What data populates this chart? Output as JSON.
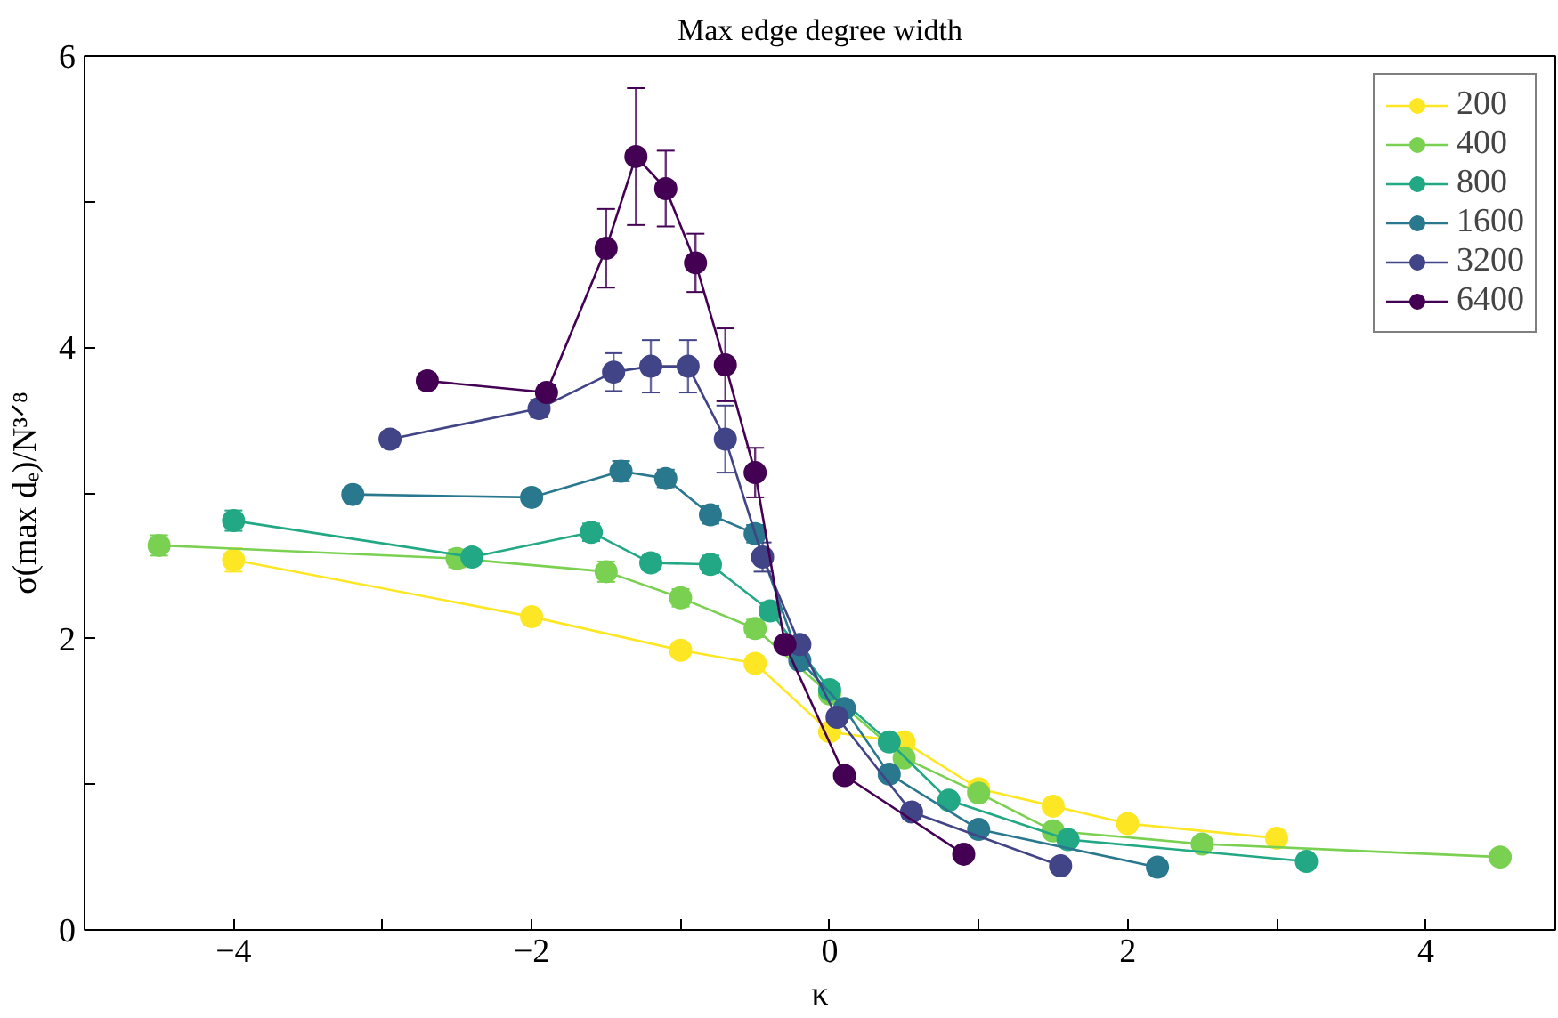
{
  "chart_data": {
    "type": "line",
    "title": "Max edge degree width",
    "xlabel": "κ",
    "ylabel": "σ(max dₑ)/N³ᐟ⁸",
    "xlim": [
      -5,
      4.87
    ],
    "ylim": [
      0,
      6
    ],
    "xticks": [
      {
        "value": -5,
        "label": null
      },
      {
        "value": -4,
        "label": "−4"
      },
      {
        "value": -3,
        "label": null
      },
      {
        "value": -2,
        "label": "−2"
      },
      {
        "value": -1,
        "label": null
      },
      0,
      {
        "value": 1,
        "label": null
      },
      2,
      {
        "value": 3,
        "label": null
      },
      4
    ],
    "yticks": [
      0,
      {
        "value": 1,
        "label": null
      },
      2,
      {
        "value": 3,
        "label": null
      },
      4,
      {
        "value": 5,
        "label": null
      },
      6
    ],
    "grid": false,
    "legend": "top right",
    "marker": "circle",
    "line_style": "solid",
    "series": [
      {
        "name": "200",
        "color": "#fde725",
        "x": [
          -4,
          -2,
          -1,
          -0.5,
          0,
          0.5,
          1,
          1.5,
          2,
          3
        ],
        "values": [
          2.54,
          2.15,
          1.92,
          1.83,
          1.36,
          1.29,
          0.97,
          0.85,
          0.73,
          0.63
        ],
        "errors": [
          0.08,
          0.05,
          0.04,
          0.05,
          null,
          null,
          null,
          null,
          null,
          null
        ]
      },
      {
        "name": "400",
        "color": "#7ad151",
        "x": [
          -4.5,
          -2.5,
          -1.5,
          -1,
          -0.5,
          0,
          0.5,
          1,
          1.5,
          2.5,
          4.5
        ],
        "values": [
          2.64,
          2.55,
          2.46,
          2.28,
          2.07,
          1.62,
          1.18,
          0.94,
          0.68,
          0.59,
          0.5
        ],
        "errors": [
          0.07,
          0.06,
          0.07,
          0.06,
          0.06,
          null,
          null,
          null,
          null,
          null,
          null
        ]
      },
      {
        "name": "800",
        "color": "#22a884",
        "x": [
          -4,
          -2.4,
          -1.6,
          -1.2,
          -0.8,
          -0.4,
          0,
          0.4,
          0.8,
          1.6,
          3.2
        ],
        "values": [
          2.81,
          2.56,
          2.73,
          2.52,
          2.51,
          2.19,
          1.65,
          1.29,
          0.89,
          0.62,
          0.47
        ],
        "errors": [
          0.07,
          0.05,
          0.06,
          0.05,
          0.06,
          0.06,
          null,
          null,
          null,
          null,
          null
        ]
      },
      {
        "name": "1600",
        "color": "#2a788e",
        "x": [
          -3.2,
          -2,
          -1.4,
          -1.1,
          -0.8,
          -0.5,
          -0.2,
          0.1,
          0.4,
          1,
          2.2
        ],
        "values": [
          2.99,
          2.97,
          3.15,
          3.1,
          2.85,
          2.72,
          1.85,
          1.52,
          1.07,
          0.69,
          0.43
        ],
        "errors": [
          0.05,
          0.05,
          0.07,
          0.06,
          0.06,
          0.06,
          null,
          null,
          null,
          null,
          null
        ]
      },
      {
        "name": "3200",
        "color": "#414487",
        "x": [
          -2.95,
          -1.95,
          -1.45,
          -1.2,
          -0.95,
          -0.7,
          -0.45,
          -0.2,
          0.05,
          0.55,
          1.55
        ],
        "values": [
          3.37,
          3.58,
          3.83,
          3.87,
          3.87,
          3.37,
          2.56,
          1.96,
          1.46,
          0.81,
          0.44
        ],
        "errors": [
          0.05,
          0.06,
          0.13,
          0.18,
          0.18,
          0.23,
          0.1,
          null,
          null,
          null,
          null
        ]
      },
      {
        "name": "6400",
        "color": "#440154",
        "x": [
          -2.7,
          -1.9,
          -1.5,
          -1.3,
          -1.1,
          -0.9,
          -0.7,
          -0.5,
          -0.3,
          0.1,
          0.9
        ],
        "values": [
          3.77,
          3.69,
          4.68,
          5.31,
          5.09,
          4.58,
          3.88,
          3.14,
          1.96,
          1.06,
          0.52
        ],
        "errors": [
          0.05,
          0.05,
          0.27,
          0.47,
          0.26,
          0.2,
          0.25,
          0.17,
          null,
          null,
          null
        ]
      }
    ]
  }
}
